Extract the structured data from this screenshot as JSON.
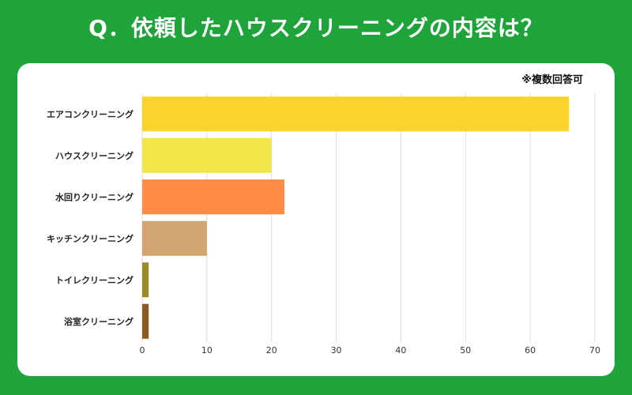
{
  "title": "Q．依頼したハウスクリーニングの内容は？",
  "note": "※複数回答可",
  "chart_data": {
    "type": "bar",
    "orientation": "horizontal",
    "categories": [
      "エアコンクリーニング",
      "ハウスクリーニング",
      "水回りクリーニング",
      "キッチンクリーニング",
      "トイレクリーニング",
      "浴室クリーニング"
    ],
    "values": [
      66,
      20,
      22,
      10,
      1,
      1
    ],
    "colors": [
      "#fcd22e",
      "#f0e64a",
      "#ff8c44",
      "#d2a570",
      "#9a8a28",
      "#8a5a22"
    ],
    "xlim": [
      0,
      70
    ],
    "xticks": [
      "0",
      "10",
      "20",
      "30",
      "40",
      "50",
      "60",
      "70"
    ],
    "grid": "vertical",
    "title": "",
    "xlabel": "",
    "ylabel": ""
  }
}
